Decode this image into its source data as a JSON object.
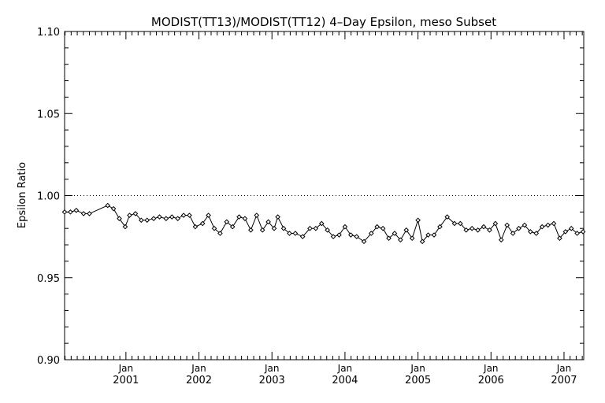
{
  "chart_data": {
    "type": "line",
    "title": "MODIST(TT13)/MODIST(TT12) 4–Day Epsilon, meso Subset",
    "ylabel": "Epsilon Ratio",
    "xlabel": "",
    "ylim": [
      0.9,
      1.1
    ],
    "y_ticks": [
      "0.90",
      "0.95",
      "1.00",
      "1.05",
      "1.10"
    ],
    "x_ticks": [
      {
        "top": "Jan",
        "bottom": "2001",
        "year": 2001.0
      },
      {
        "top": "Jan",
        "bottom": "2002",
        "year": 2002.0
      },
      {
        "top": "Jan",
        "bottom": "2003",
        "year": 2003.0
      },
      {
        "top": "Jan",
        "bottom": "2004",
        "year": 2004.0
      },
      {
        "top": "Jan",
        "bottom": "2005",
        "year": 2005.0
      },
      {
        "top": "Jan",
        "bottom": "2006",
        "year": 2006.0
      },
      {
        "top": "Jan",
        "bottom": "2007",
        "year": 2007.0
      }
    ],
    "xlim_year": [
      2000.16,
      2007.27
    ],
    "reference_line": 1.0,
    "grid": false,
    "series": [
      {
        "marker": "diamond",
        "x_year": [
          2000.16,
          2000.24,
          2000.32,
          2000.42,
          2000.5,
          2000.75,
          2000.83,
          2000.91,
          2000.99,
          2001.05,
          2001.13,
          2001.21,
          2001.29,
          2001.38,
          2001.46,
          2001.55,
          2001.63,
          2001.71,
          2001.79,
          2001.87,
          2001.95,
          2002.05,
          2002.13,
          2002.21,
          2002.29,
          2002.38,
          2002.46,
          2002.55,
          2002.63,
          2002.71,
          2002.79,
          2002.87,
          2002.95,
          2003.03,
          2003.08,
          2003.16,
          2003.24,
          2003.32,
          2003.42,
          2003.52,
          2003.6,
          2003.68,
          2003.76,
          2003.84,
          2003.92,
          2004.0,
          2004.08,
          2004.16,
          2004.26,
          2004.36,
          2004.44,
          2004.52,
          2004.6,
          2004.68,
          2004.76,
          2004.84,
          2004.92,
          2005.0,
          2005.06,
          2005.14,
          2005.22,
          2005.3,
          2005.4,
          2005.5,
          2005.58,
          2005.66,
          2005.74,
          2005.82,
          2005.9,
          2005.98,
          2006.06,
          2006.14,
          2006.22,
          2006.3,
          2006.38,
          2006.46,
          2006.54,
          2006.62,
          2006.7,
          2006.78,
          2006.86,
          2006.94,
          2007.02,
          2007.1,
          2007.18,
          2007.26
        ],
        "values": [
          0.99,
          0.99,
          0.991,
          0.989,
          0.989,
          0.994,
          0.992,
          0.986,
          0.981,
          0.988,
          0.989,
          0.985,
          0.985,
          0.986,
          0.987,
          0.986,
          0.987,
          0.986,
          0.988,
          0.988,
          0.981,
          0.983,
          0.988,
          0.98,
          0.977,
          0.984,
          0.981,
          0.987,
          0.986,
          0.979,
          0.988,
          0.979,
          0.984,
          0.98,
          0.987,
          0.98,
          0.977,
          0.977,
          0.975,
          0.98,
          0.98,
          0.983,
          0.979,
          0.975,
          0.976,
          0.981,
          0.976,
          0.975,
          0.972,
          0.977,
          0.981,
          0.98,
          0.974,
          0.977,
          0.973,
          0.979,
          0.974,
          0.985,
          0.972,
          0.976,
          0.976,
          0.981,
          0.987,
          0.983,
          0.983,
          0.979,
          0.98,
          0.979,
          0.981,
          0.979,
          0.983,
          0.973,
          0.982,
          0.977,
          0.98,
          0.982,
          0.978,
          0.977,
          0.981,
          0.982,
          0.983,
          0.974,
          0.978,
          0.98,
          0.977,
          0.978
        ]
      }
    ]
  }
}
